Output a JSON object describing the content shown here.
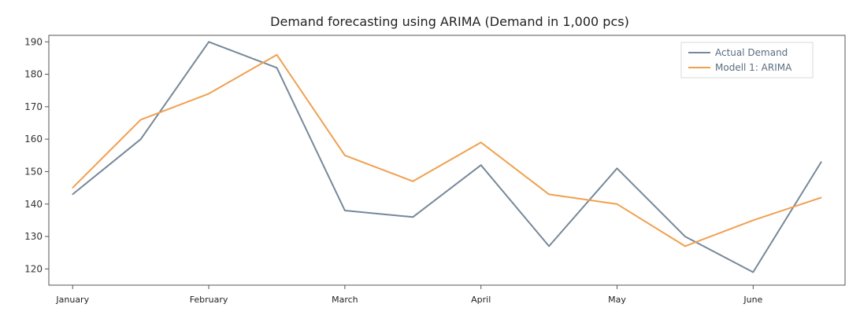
{
  "chart_data": {
    "type": "line",
    "title": "Demand forecasting using ARIMA (Demand in 1,000 pcs)",
    "xlabel": "",
    "ylabel": "",
    "x_tick_labels": [
      "January",
      "February",
      "March",
      "April",
      "May",
      "June"
    ],
    "x_tick_positions": [
      0,
      2,
      4,
      6,
      8,
      10
    ],
    "x_range": [
      -0.35,
      11.35
    ],
    "ylim": [
      115,
      192
    ],
    "yticks": [
      120,
      130,
      140,
      150,
      160,
      170,
      180,
      190
    ],
    "grid": false,
    "legend_position": "top-right",
    "series": [
      {
        "name": "Actual Demand",
        "color": "#778899",
        "x": [
          0,
          1,
          2,
          3,
          4,
          5,
          6,
          7,
          8,
          9,
          10,
          11
        ],
        "values": [
          143,
          160,
          190,
          182,
          138,
          136,
          152,
          127,
          151,
          130,
          119,
          153
        ]
      },
      {
        "name": "Modell 1: ARIMA",
        "color": "#f0a050",
        "x": [
          0,
          1,
          2,
          3,
          4,
          5,
          6,
          7,
          8,
          9,
          10,
          11
        ],
        "values": [
          145,
          166,
          174,
          186,
          155,
          147,
          159,
          143,
          140,
          127,
          135,
          142
        ]
      }
    ]
  }
}
